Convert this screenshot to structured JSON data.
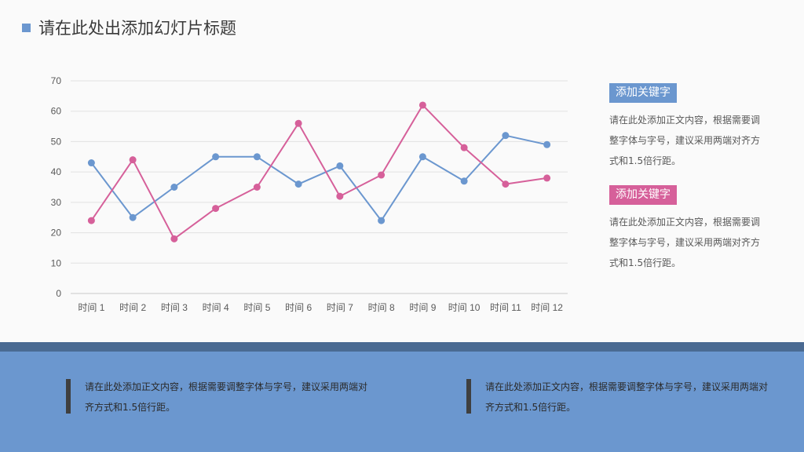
{
  "slide": {
    "title": "请在此处出添加幻灯片标题"
  },
  "sidebar": {
    "blocks": [
      {
        "keyword": "添加关键字",
        "text": "请在此处添加正文内容，根据需要调整字体与字号，建议采用两端对齐方式和1.5倍行距。",
        "color": "#6b97cf"
      },
      {
        "keyword": "添加关键字",
        "text": "请在此处添加正文内容，根据需要调整字体与字号，建议采用两端对齐方式和1.5倍行距。",
        "color": "#d6609a"
      }
    ]
  },
  "footer": {
    "texts": [
      "请在此处添加正文内容，根据需要调整字体与字号，建议采用两端对齐方式和1.5倍行距。",
      "请在此处添加正文内容，根据需要调整字体与字号，建议采用两端对齐方式和1.5倍行距。"
    ]
  },
  "chart_data": {
    "type": "line",
    "categories": [
      "时间 1",
      "时间 2",
      "时间 3",
      "时间 4",
      "时间 5",
      "时间 6",
      "时间 7",
      "时间 8",
      "时间 9",
      "时间 10",
      "时间 11",
      "时间 12"
    ],
    "series": [
      {
        "color": "#6b97cf",
        "values": [
          43,
          25,
          35,
          45,
          45,
          36,
          42,
          24,
          45,
          37,
          52,
          49
        ]
      },
      {
        "color": "#d6609a",
        "values": [
          24,
          44,
          18,
          28,
          35,
          56,
          32,
          39,
          62,
          48,
          36,
          38
        ]
      }
    ],
    "yticks": [
      0,
      10,
      20,
      30,
      40,
      50,
      60,
      70
    ],
    "ylim": [
      0,
      70
    ],
    "grid": true,
    "legend": false
  }
}
